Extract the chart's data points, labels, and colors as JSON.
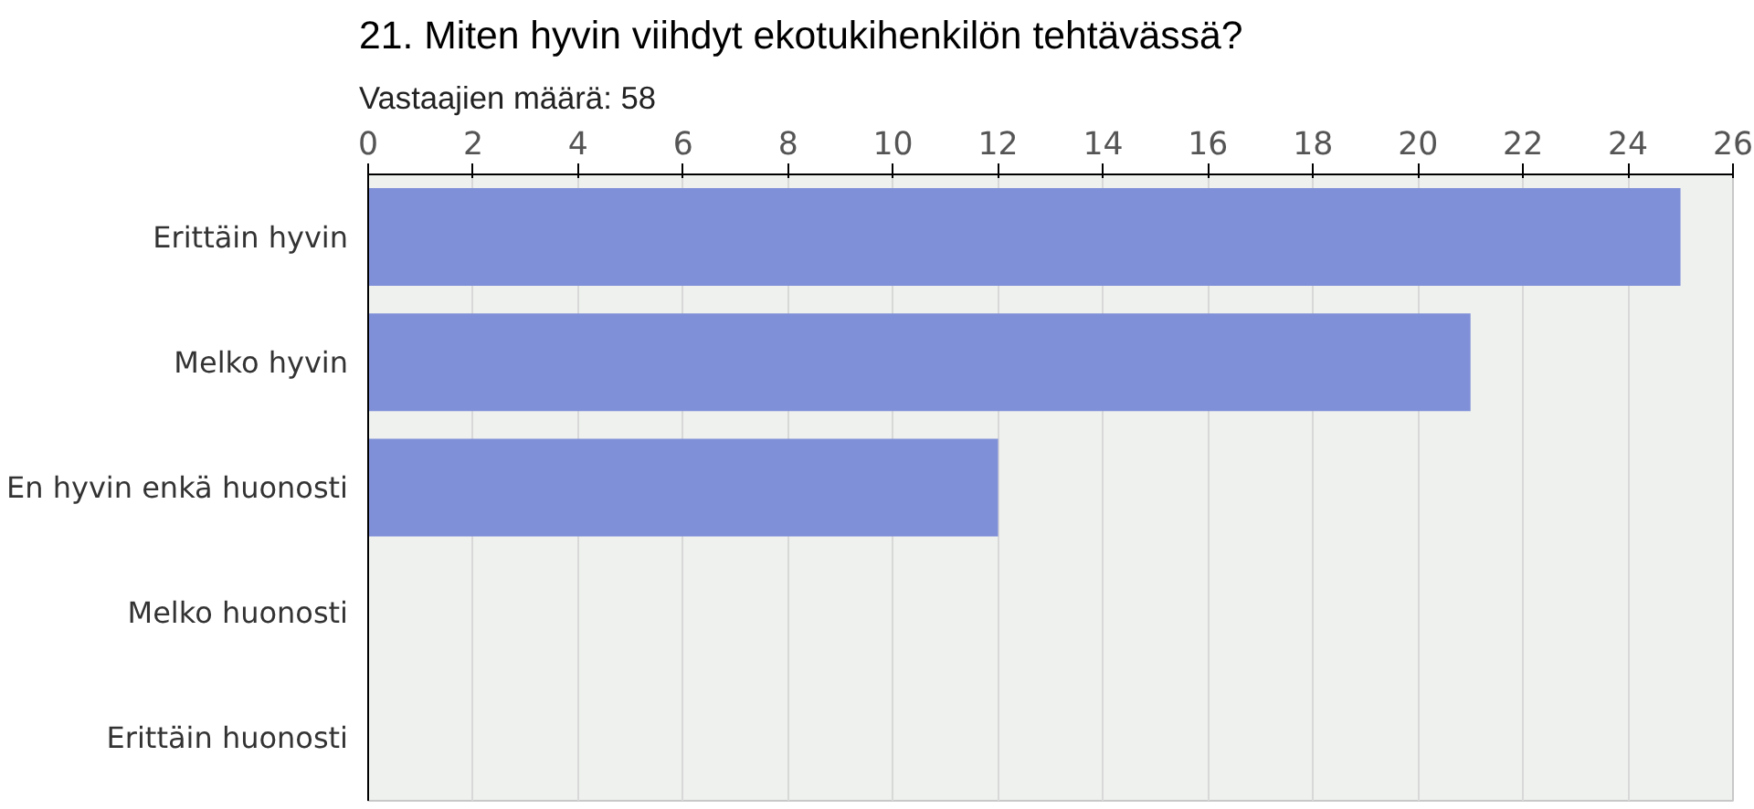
{
  "chart_data": {
    "type": "bar",
    "orientation": "horizontal",
    "title": "21. Miten hyvin viihdyt ekotukihenkilön tehtävässä?",
    "subtitle": "Vastaajien määrä: 58",
    "categories": [
      "Erittäin hyvin",
      "Melko hyvin",
      "En hyvin enkä huonosti",
      "Melko huonosti",
      "Erittäin huonosti"
    ],
    "values": [
      25,
      21,
      12,
      0,
      0
    ],
    "color": "#8090d8",
    "xlim": [
      0,
      26
    ],
    "xticks": [
      0,
      2,
      4,
      6,
      8,
      10,
      12,
      14,
      16,
      18,
      20,
      22,
      24,
      26
    ],
    "grid": "x"
  }
}
